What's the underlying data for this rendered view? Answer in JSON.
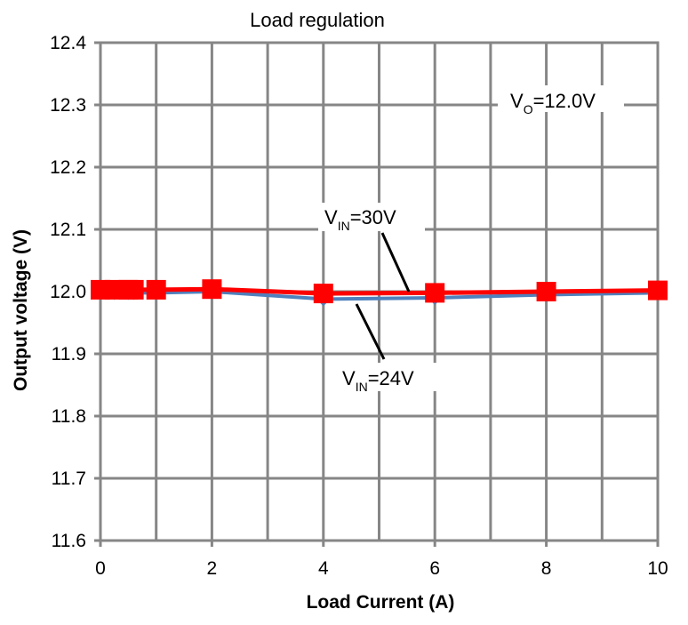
{
  "chart_data": {
    "type": "line",
    "title": "Load regulation",
    "xlabel": "Load Current (A)",
    "ylabel": "Output voltage (V)",
    "xlim": [
      0,
      10
    ],
    "ylim": [
      11.6,
      12.4
    ],
    "x_ticks": [
      "0",
      "2",
      "4",
      "6",
      "8",
      "10"
    ],
    "y_ticks": [
      "11.6",
      "11.7",
      "11.8",
      "11.9",
      "12.0",
      "12.1",
      "12.2",
      "12.3",
      "12.4"
    ],
    "grid": true,
    "series": [
      {
        "name": "VIN=24V",
        "color": "#4f81bd",
        "marker": "diamond",
        "x": [
          0,
          0.25,
          0.5,
          0.6,
          1,
          2,
          4,
          6,
          8,
          10
        ],
        "y": [
          11.998,
          11.998,
          11.998,
          11.998,
          11.998,
          12.0,
          11.988,
          11.99,
          11.995,
          11.998
        ]
      },
      {
        "name": "VIN=30V",
        "color": "#ff0000",
        "marker": "square",
        "x": [
          0,
          0.25,
          0.5,
          0.6,
          1,
          2,
          4,
          6,
          8,
          10
        ],
        "y": [
          12.003,
          12.003,
          12.003,
          12.003,
          12.003,
          12.004,
          11.997,
          11.998,
          12.0,
          12.002
        ]
      }
    ],
    "annotations": {
      "vo": {
        "main": "V",
        "sub": "O",
        "rest": "=12.0V"
      },
      "vin30": {
        "main": "V",
        "sub": "IN",
        "rest": "=30V"
      },
      "vin24": {
        "main": "V",
        "sub": "IN",
        "rest": "=24V"
      }
    }
  }
}
